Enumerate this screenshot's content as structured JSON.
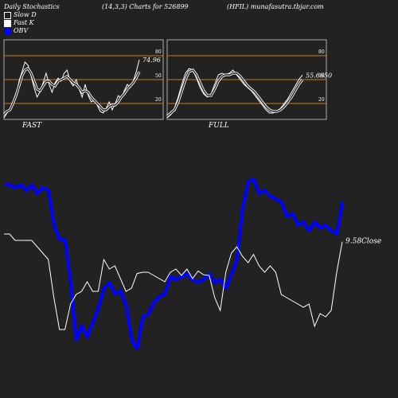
{
  "header": {
    "title": "Daily Stochastics",
    "params": "(14,3,3) Charts for 526899",
    "source": "(HFIL) munafasutra.tbjar.com"
  },
  "legend": [
    {
      "label": "Slow  D",
      "color": "#222222",
      "border": "#ffffff"
    },
    {
      "label": "Fast K",
      "color": "#ffffff",
      "border": "#ffffff"
    },
    {
      "label": "OBV",
      "color": "#0000ff",
      "border": "#0000ff"
    }
  ],
  "colors": {
    "background": "#222222",
    "grid": "#c87f0a",
    "obv": "#0000ff",
    "price": "#ffffff"
  },
  "chart_data": [
    {
      "type": "line",
      "title": "FAST",
      "ylim": [
        0,
        100
      ],
      "yticks": [
        20,
        50,
        80
      ],
      "last_value_label": "74.96",
      "series": [
        {
          "name": "Fast K",
          "values": [
            2,
            8,
            14,
            18,
            28,
            48,
            60,
            72,
            68,
            55,
            40,
            28,
            35,
            46,
            58,
            44,
            34,
            46,
            52,
            48,
            58,
            62,
            48,
            42,
            50,
            38,
            28,
            44,
            30,
            22,
            24,
            18,
            10,
            8,
            14,
            22,
            12,
            20,
            30,
            26,
            36,
            44,
            40,
            48,
            60,
            74.96
          ]
        },
        {
          "name": "Slow  D",
          "values": [
            6,
            10,
            12,
            20,
            30,
            42,
            55,
            62,
            64,
            58,
            48,
            38,
            36,
            42,
            48,
            48,
            44,
            42,
            48,
            50,
            52,
            54,
            50,
            46,
            44,
            40,
            34,
            36,
            34,
            28,
            24,
            20,
            16,
            12,
            12,
            16,
            18,
            18,
            22,
            28,
            32,
            38,
            42,
            46,
            52,
            60
          ]
        }
      ]
    },
    {
      "type": "line",
      "title": "FULL",
      "ylim": [
        0,
        100
      ],
      "yticks": [
        20,
        50,
        80
      ],
      "last_value_label": "55.66",
      "last_value_label_2": "50",
      "series": [
        {
          "name": "Fast K",
          "values": [
            2,
            6,
            14,
            28,
            44,
            58,
            64,
            62,
            52,
            40,
            32,
            28,
            32,
            44,
            56,
            58,
            56,
            58,
            62,
            56,
            50,
            44,
            40,
            36,
            30,
            24,
            18,
            12,
            8,
            8,
            10,
            14,
            20,
            26,
            34,
            42,
            50,
            55.66
          ]
        },
        {
          "name": "Slow  D",
          "values": [
            4,
            8,
            12,
            22,
            36,
            50,
            60,
            62,
            56,
            46,
            36,
            30,
            30,
            38,
            48,
            54,
            56,
            56,
            58,
            58,
            54,
            48,
            42,
            38,
            34,
            28,
            22,
            16,
            12,
            10,
            10,
            12,
            16,
            22,
            28,
            36,
            44,
            50
          ]
        }
      ]
    },
    {
      "type": "line",
      "title": "",
      "close_label": "9.58",
      "close_label_suffix": "Close",
      "series": [
        {
          "name": "OBV",
          "values": [
            64,
            64,
            63,
            64,
            62,
            64,
            61,
            63,
            62,
            50,
            45,
            45,
            30,
            10,
            15,
            11,
            16,
            21,
            28,
            30,
            26,
            27,
            22,
            10,
            7,
            18,
            19,
            23,
            25,
            26,
            32,
            31,
            32,
            33,
            31,
            30,
            31,
            33,
            30,
            31,
            28,
            33,
            38,
            56,
            65,
            66,
            61,
            62,
            60,
            59,
            58,
            53,
            54,
            50,
            51,
            48,
            51,
            49,
            50,
            48,
            47,
            58
          ]
        },
        {
          "name": "Close",
          "values": [
            9.7,
            9.7,
            9.6,
            9.6,
            9.6,
            9.6,
            9.5,
            9.4,
            9.3,
            8.7,
            8.2,
            8.2,
            8.6,
            8.75,
            8.8,
            8.95,
            8.8,
            8.8,
            9.3,
            9.15,
            9.2,
            9.0,
            8.8,
            8.85,
            9.08,
            9.1,
            9.1,
            9.05,
            9.0,
            8.95,
            9.1,
            9.15,
            9.05,
            9.15,
            9.0,
            9.12,
            9.06,
            9.05,
            8.7,
            8.5,
            9.1,
            9.4,
            9.5,
            9.35,
            9.25,
            9.38,
            9.2,
            9.1,
            9.2,
            9.1,
            8.75,
            8.7,
            8.65,
            8.6,
            8.55,
            8.6,
            8.25,
            8.45,
            8.4,
            8.5,
            9.1,
            9.58
          ]
        }
      ]
    }
  ]
}
